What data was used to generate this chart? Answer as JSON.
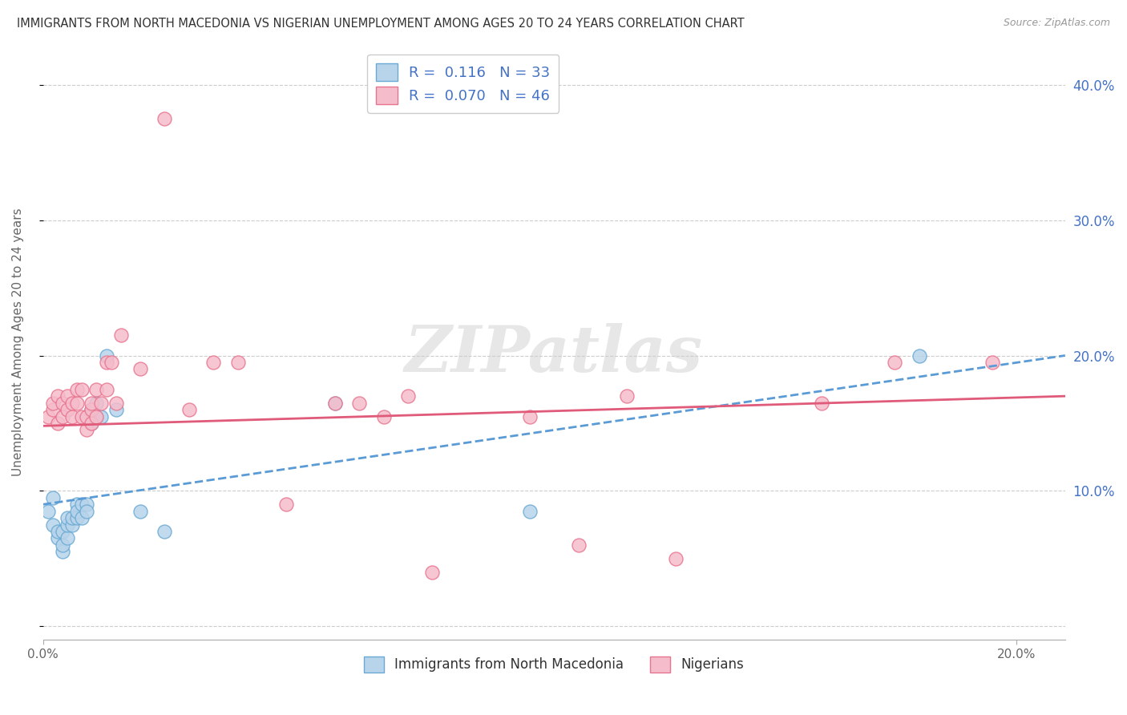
{
  "title": "IMMIGRANTS FROM NORTH MACEDONIA VS NIGERIAN UNEMPLOYMENT AMONG AGES 20 TO 24 YEARS CORRELATION CHART",
  "source": "Source: ZipAtlas.com",
  "ylabel": "Unemployment Among Ages 20 to 24 years",
  "xlim": [
    0.0,
    0.21
  ],
  "ylim": [
    -0.01,
    0.43
  ],
  "yticks": [
    0.0,
    0.1,
    0.2,
    0.3,
    0.4
  ],
  "xticks": [
    0.0,
    0.2
  ],
  "xtick_labels": [
    "0.0%",
    "20.0%"
  ],
  "ytick_labels_right": [
    "",
    "10.0%",
    "20.0%",
    "30.0%",
    "40.0%"
  ],
  "series1_name": "Immigrants from North Macedonia",
  "series1_R": "0.116",
  "series1_N": "33",
  "series1_color": "#b8d4ea",
  "series1_edge_color": "#6aaad4",
  "series2_name": "Nigerians",
  "series2_R": "0.070",
  "series2_N": "46",
  "series2_color": "#f5bccb",
  "series2_edge_color": "#e8758f",
  "trend1_color": "#5b9bd5",
  "trend2_color": "#e05a7a",
  "legend_text_color": "#4472c4",
  "right_axis_color": "#4472c4",
  "watermark": "ZIPatlas",
  "watermark_color": "#d0d0d0",
  "series1_x": [
    0.001,
    0.002,
    0.002,
    0.003,
    0.003,
    0.004,
    0.004,
    0.004,
    0.005,
    0.005,
    0.005,
    0.006,
    0.006,
    0.007,
    0.007,
    0.007,
    0.008,
    0.008,
    0.009,
    0.009,
    0.01,
    0.01,
    0.01,
    0.011,
    0.011,
    0.012,
    0.013,
    0.015,
    0.02,
    0.025,
    0.06,
    0.1,
    0.18
  ],
  "series1_y": [
    0.085,
    0.095,
    0.075,
    0.065,
    0.07,
    0.055,
    0.06,
    0.07,
    0.065,
    0.075,
    0.08,
    0.075,
    0.08,
    0.08,
    0.09,
    0.085,
    0.09,
    0.08,
    0.09,
    0.085,
    0.15,
    0.155,
    0.16,
    0.155,
    0.165,
    0.155,
    0.2,
    0.16,
    0.085,
    0.07,
    0.165,
    0.085,
    0.2
  ],
  "series2_x": [
    0.001,
    0.002,
    0.002,
    0.003,
    0.003,
    0.004,
    0.004,
    0.005,
    0.005,
    0.006,
    0.006,
    0.007,
    0.007,
    0.008,
    0.008,
    0.009,
    0.009,
    0.01,
    0.01,
    0.01,
    0.011,
    0.011,
    0.012,
    0.013,
    0.013,
    0.014,
    0.015,
    0.016,
    0.02,
    0.025,
    0.03,
    0.035,
    0.04,
    0.05,
    0.06,
    0.065,
    0.07,
    0.075,
    0.08,
    0.1,
    0.11,
    0.12,
    0.13,
    0.16,
    0.175,
    0.195
  ],
  "series2_y": [
    0.155,
    0.16,
    0.165,
    0.15,
    0.17,
    0.155,
    0.165,
    0.16,
    0.17,
    0.155,
    0.165,
    0.165,
    0.175,
    0.155,
    0.175,
    0.145,
    0.155,
    0.15,
    0.16,
    0.165,
    0.155,
    0.175,
    0.165,
    0.175,
    0.195,
    0.195,
    0.165,
    0.215,
    0.19,
    0.375,
    0.16,
    0.195,
    0.195,
    0.09,
    0.165,
    0.165,
    0.155,
    0.17,
    0.04,
    0.155,
    0.06,
    0.17,
    0.05,
    0.165,
    0.195,
    0.195
  ],
  "trend1_x0": 0.0,
  "trend1_y0": 0.09,
  "trend1_x1": 0.2,
  "trend1_y1": 0.2,
  "trend2_x0": 0.0,
  "trend2_y0": 0.148,
  "trend2_x1": 0.2,
  "trend2_y1": 0.17
}
